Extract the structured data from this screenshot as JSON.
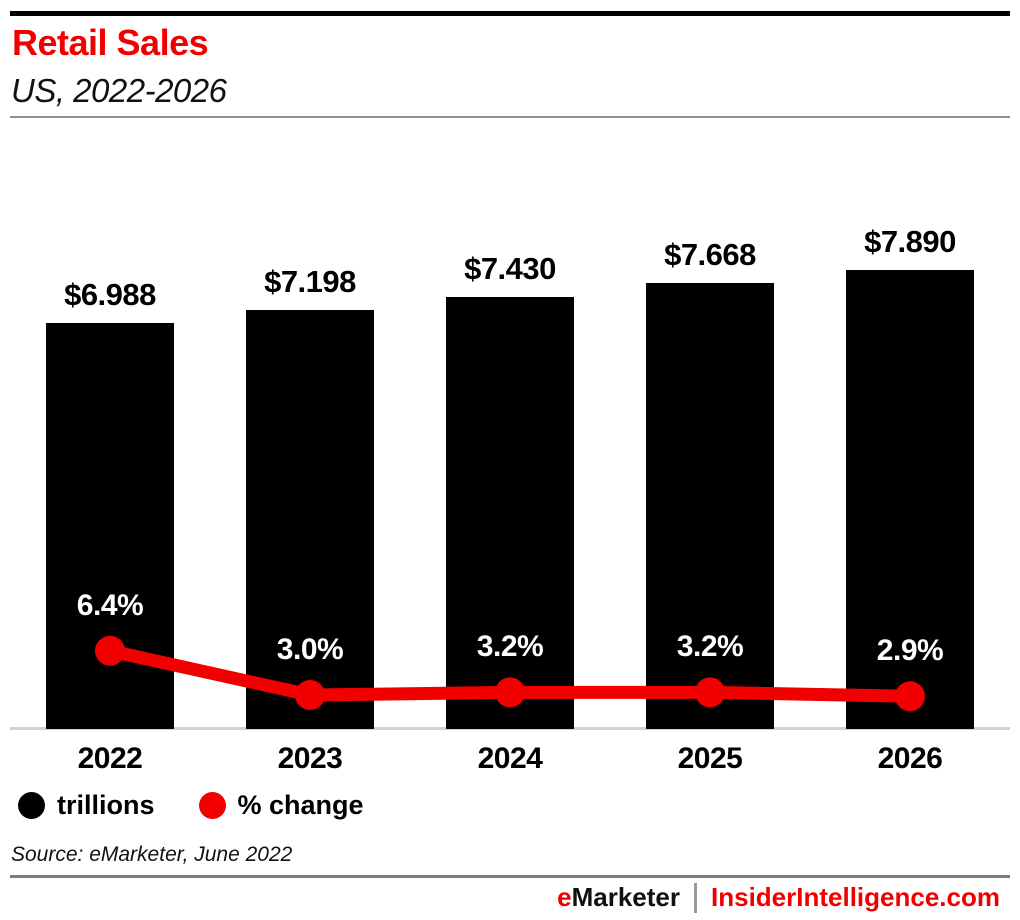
{
  "page": {
    "background": "#ffffff",
    "accent_red": "#f20000"
  },
  "header": {
    "title": "Retail Sales",
    "subtitle": "US, 2022-2026"
  },
  "chart_data": {
    "type": "bar",
    "subtype": "combo-bar-line",
    "title": "Retail Sales",
    "subtitle": "US, 2022-2026",
    "categories": [
      "2022",
      "2023",
      "2024",
      "2025",
      "2026"
    ],
    "series": [
      {
        "name": "trillions",
        "type": "bar",
        "unit": "US$ trillions",
        "color": "#000000",
        "values": [
          6.988,
          7.198,
          7.43,
          7.668,
          7.89
        ],
        "labels": [
          "$6.988",
          "$7.198",
          "$7.430",
          "$7.668",
          "$7.890"
        ]
      },
      {
        "name": "% change",
        "type": "line",
        "unit": "percent",
        "color": "#f20000",
        "values": [
          6.4,
          3.0,
          3.2,
          3.2,
          2.9
        ],
        "labels": [
          "6.4%",
          "3.0%",
          "3.2%",
          "3.2%",
          "2.9%"
        ]
      }
    ],
    "xlabel": "",
    "ylabel": "",
    "ylim": [
      0,
      8.8
    ],
    "grid": false,
    "legend_position": "bottom-left",
    "legend": [
      {
        "label": "trillions",
        "color": "#000000"
      },
      {
        "label": "% change",
        "color": "#f20000"
      }
    ]
  },
  "source": "Source: eMarketer, June 2022",
  "footer": {
    "brand_prefix": "e",
    "brand_name": "Marketer",
    "separator": "|",
    "site": "InsiderIntelligence.com"
  }
}
